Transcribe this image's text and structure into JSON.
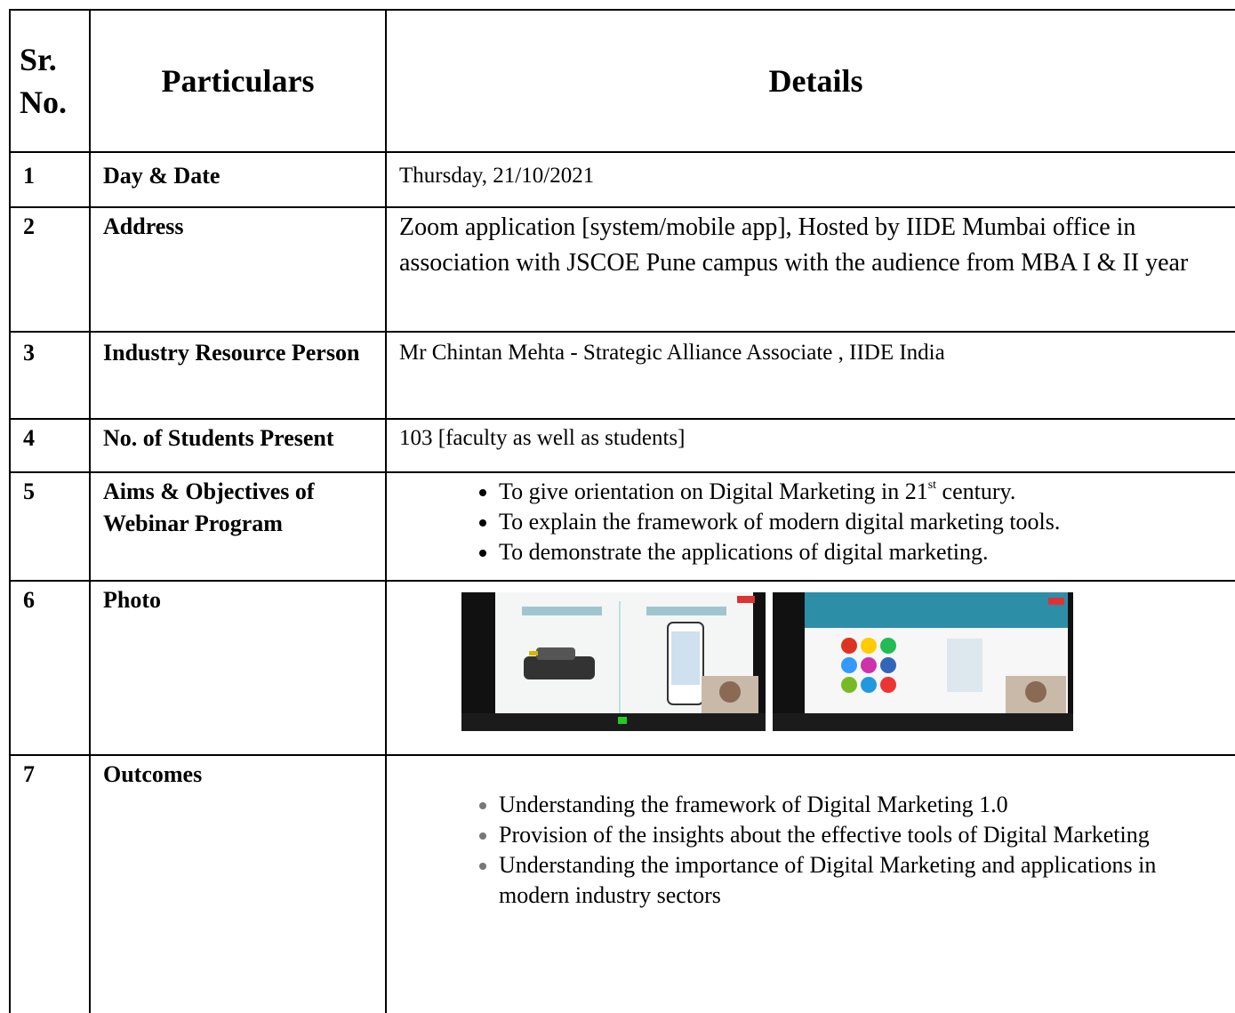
{
  "header": {
    "sr_no": "Sr. No.",
    "particulars": "Particulars",
    "details": "Details"
  },
  "rows": [
    {
      "no": "1",
      "particular": "Day & Date",
      "detail": "Thursday, 21/10/2021"
    },
    {
      "no": "2",
      "particular": "Address",
      "detail": "Zoom application [system/mobile app], Hosted by IIDE Mumbai office in association with JSCOE Pune campus with the audience from MBA I & II year"
    },
    {
      "no": "3",
      "particular": "Industry Resource Person",
      "detail": "Mr Chintan Mehta - Strategic Alliance Associate , IIDE India"
    },
    {
      "no": "4",
      "particular": "No. of Students Present",
      "detail": "103 [faculty as well as students]"
    },
    {
      "no": "5",
      "particular": "Aims & Objectives of Webinar Program",
      "items": [
        {
          "text": "To give orientation on Digital Marketing in 21",
          "sup": "st",
          "after": " century."
        },
        {
          "text": "To explain the framework of modern digital marketing tools."
        },
        {
          "text": "To demonstrate the applications of digital marketing."
        }
      ]
    },
    {
      "no": "6",
      "particular": "Photo"
    },
    {
      "no": "7",
      "particular": "Outcomes",
      "items": [
        {
          "text": "Understanding the framework of Digital Marketing 1.0"
        },
        {
          "text": "Provision of the insights about the effective tools of Digital Marketing"
        },
        {
          "text": "Understanding the importance of Digital Marketing and applications in modern industry sectors"
        }
      ]
    }
  ]
}
